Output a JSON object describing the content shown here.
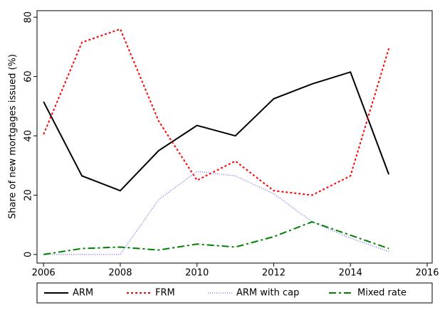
{
  "chart_data": {
    "type": "line",
    "y_label": "Share of new mortgages issued (%)",
    "x": [
      2006,
      2007,
      2008,
      2009,
      2010,
      2011,
      2012,
      2013,
      2014,
      2015
    ],
    "series": [
      {
        "name": "ARM",
        "color": "#000000",
        "values": [
          51.5,
          26.5,
          21.5,
          35,
          43.5,
          40,
          52.5,
          57.5,
          61.5,
          27
        ]
      },
      {
        "name": "FRM",
        "color": "#ff0000",
        "values": [
          40.5,
          71.5,
          76,
          45,
          25,
          31.5,
          21.5,
          20,
          26.5,
          69.5
        ]
      },
      {
        "name": "ARM with cap",
        "color": "#6060ff",
        "values": [
          0,
          0,
          0,
          18.5,
          28,
          26.5,
          20.5,
          11,
          5.5,
          1
        ]
      },
      {
        "name": "Mixed rate",
        "color": "#008000",
        "values": [
          0,
          2,
          2.5,
          1.5,
          3.5,
          2.5,
          6,
          11,
          6.5,
          2
        ]
      }
    ],
    "xlim": [
      2005.83,
      2016.13
    ],
    "xticks": [
      2006,
      2008,
      2010,
      2012,
      2014,
      2016
    ],
    "ylim": [
      -2.9,
      82.2
    ],
    "yticks": [
      0,
      20,
      40,
      60,
      80
    ],
    "legend": "bottom",
    "grid": false
  }
}
